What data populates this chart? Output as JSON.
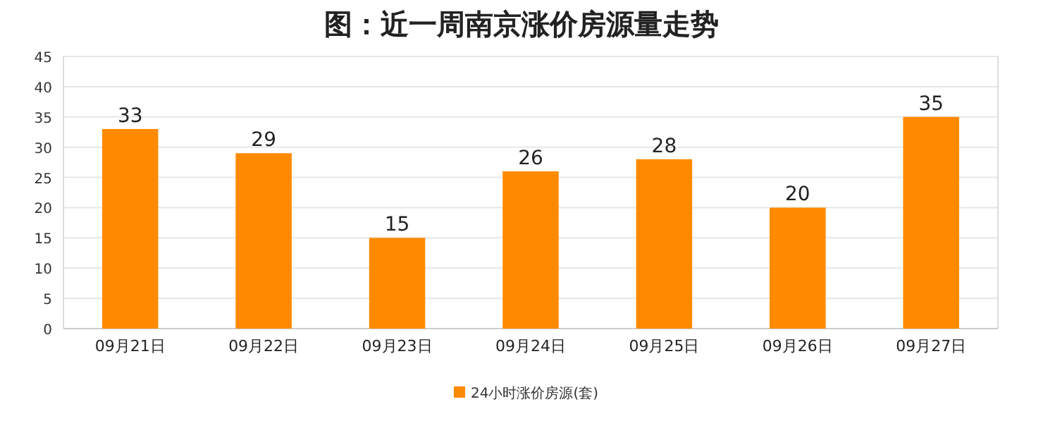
{
  "chart_data": {
    "type": "bar",
    "title": "图：近一周南京涨价房源量走势",
    "categories": [
      "09月21日",
      "09月22日",
      "09月23日",
      "09月24日",
      "09月25日",
      "09月26日",
      "09月27日"
    ],
    "series": [
      {
        "name": "24小时涨价房源(套)",
        "color": "#ff8a00",
        "values": [
          33,
          29,
          15,
          26,
          28,
          20,
          35
        ]
      }
    ],
    "ylim": [
      0,
      45
    ],
    "yticks": [
      0,
      5,
      10,
      15,
      20,
      25,
      30,
      35,
      40,
      45
    ],
    "grid": "y",
    "legend": "bottom",
    "data_labels": true
  }
}
